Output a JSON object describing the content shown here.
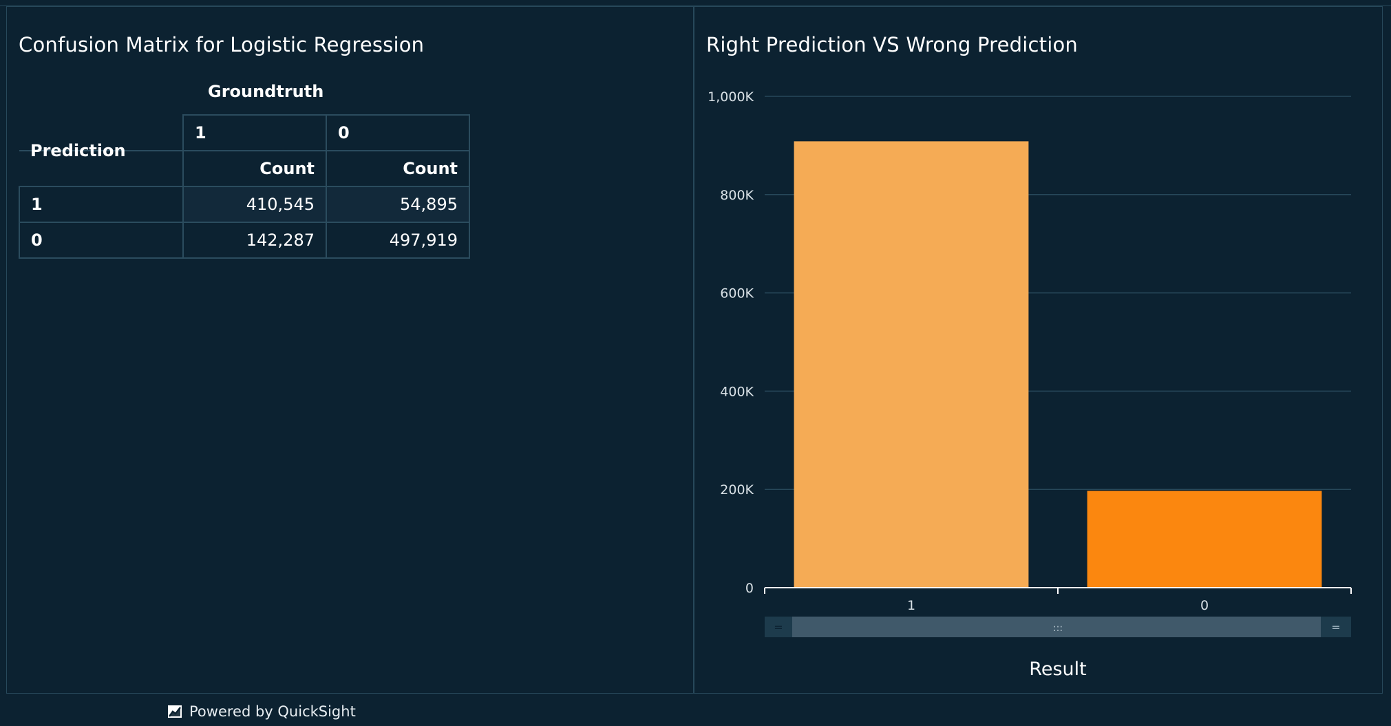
{
  "footer": {
    "powered_by": "Powered by QuickSight"
  },
  "left_panel": {
    "title": "Confusion Matrix for Logistic Regression",
    "pivot": {
      "column_group_label": "Groundtruth",
      "row_field_label": "Prediction",
      "columns": [
        {
          "value": "1",
          "measure": "Count"
        },
        {
          "value": "0",
          "measure": "Count"
        }
      ],
      "rows": [
        {
          "label": "1",
          "values": [
            "410,545",
            "54,895"
          ]
        },
        {
          "label": "0",
          "values": [
            "142,287",
            "497,919"
          ]
        }
      ]
    }
  },
  "right_panel": {
    "title": "Right Prediction VS Wrong Prediction",
    "colors": {
      "bar_1": "#f5ab55",
      "bar_0": "#fb870f",
      "grid": "#27485a",
      "axis": "#ffffff",
      "scroll_track": "#1d3b4c",
      "scroll_thumb": "#40596a"
    }
  },
  "chart_data": {
    "type": "bar",
    "categories": [
      "1",
      "0"
    ],
    "values": [
      908464,
      197182
    ],
    "title": "Right Prediction VS Wrong Prediction",
    "xlabel": "Result",
    "ylabel": "",
    "ylim": [
      0,
      1000000
    ],
    "yticks": [
      0,
      200000,
      400000,
      600000,
      800000,
      1000000
    ],
    "ytick_labels": [
      "0",
      "200K",
      "400K",
      "600K",
      "800K",
      "1,000K"
    ],
    "grid": true
  }
}
